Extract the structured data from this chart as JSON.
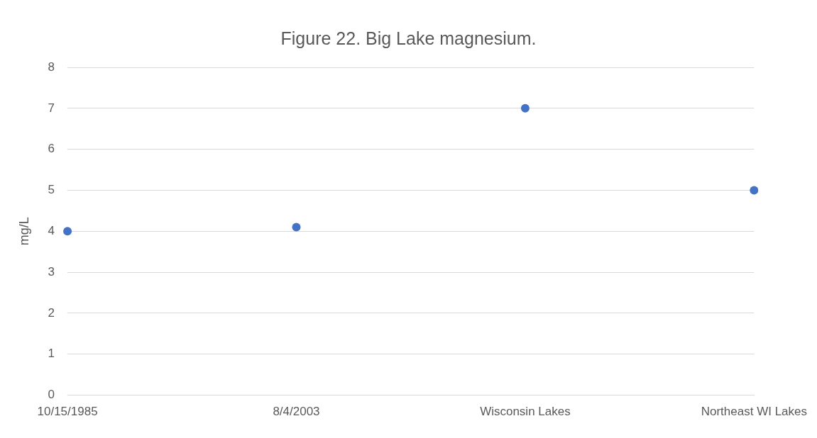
{
  "chart_data": {
    "type": "scatter",
    "title": "Figure 22. Big Lake magnesium.",
    "ylabel": "mg/L",
    "categories": [
      "10/15/1985",
      "8/4/2003",
      "Wisconsin Lakes",
      "Northeast WI Lakes"
    ],
    "values": [
      4,
      4.1,
      7,
      5
    ],
    "color": "#4472c4",
    "ylim": [
      0,
      8
    ],
    "yticks": [
      0,
      1,
      2,
      3,
      4,
      5,
      6,
      7,
      8
    ],
    "grid": "y",
    "legend": false,
    "marker": "circle"
  }
}
